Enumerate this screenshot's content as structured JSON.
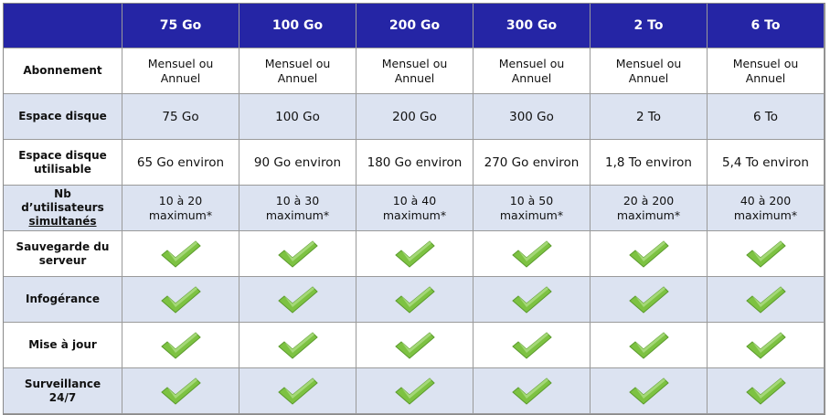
{
  "table": {
    "columns": [
      "75 Go",
      "100 Go",
      "200 Go",
      "300 Go",
      "2 To",
      "6 To"
    ],
    "rows": [
      {
        "label": "Abonnement",
        "cells": [
          "Mensuel ou Annuel",
          "Mensuel ou Annuel",
          "Mensuel ou Annuel",
          "Mensuel ou Annuel",
          "Mensuel ou Annuel",
          "Mensuel ou Annuel"
        ]
      },
      {
        "label": "Espace disque",
        "cells": [
          "75 Go",
          "100 Go",
          "200 Go",
          "300 Go",
          "2 To",
          "6 To"
        ]
      },
      {
        "label": "Espace disque utilisable",
        "cells": [
          "65 Go environ",
          "90 Go environ",
          "180 Go environ",
          "270 Go environ",
          "1,8 To environ",
          "5,4 To environ"
        ]
      },
      {
        "label": "Nb d’utilisateurs",
        "label_underlined": "simultanés",
        "cells": [
          "10 à 20 maximum*",
          "10 à 30 maximum*",
          "10 à 40 maximum*",
          "10 à 50 maximum*",
          "20 à 200 maximum*",
          "40 à 200 maximum*"
        ]
      },
      {
        "label": "Sauvegarde du serveur",
        "included": [
          true,
          true,
          true,
          true,
          true,
          true
        ]
      },
      {
        "label": "Infogérance",
        "included": [
          true,
          true,
          true,
          true,
          true,
          true
        ]
      },
      {
        "label": "Mise à jour",
        "included": [
          true,
          true,
          true,
          true,
          true,
          true
        ]
      },
      {
        "label": "Surveillance 24/7",
        "included": [
          true,
          true,
          true,
          true,
          true,
          true
        ]
      }
    ]
  }
}
